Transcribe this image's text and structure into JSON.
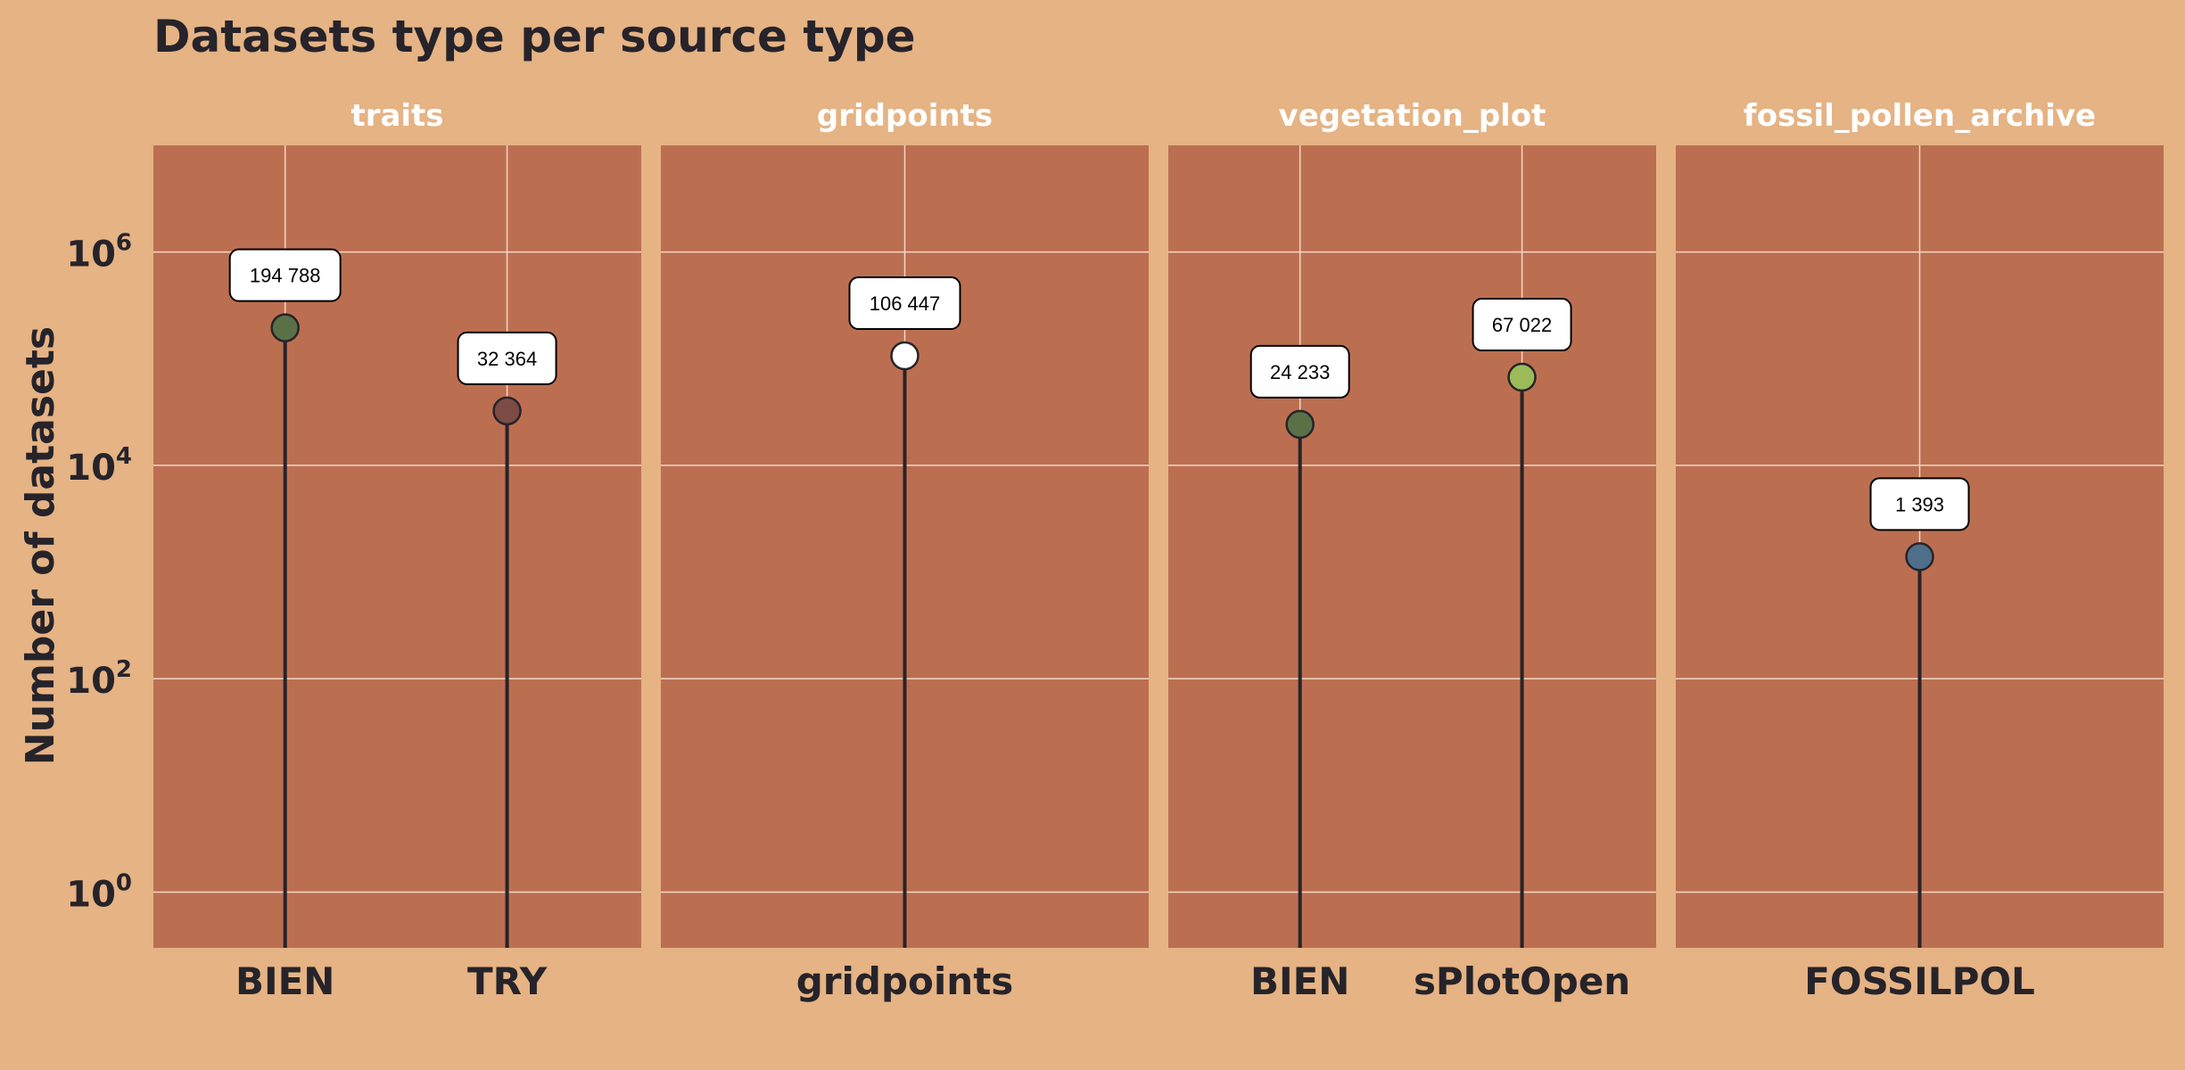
{
  "colors": {
    "background": "#e5b384",
    "panel": "#bc6f50",
    "grid": "#f0d8c8",
    "stem": "#26232a",
    "text": "#26232a",
    "strip_text": "#ffffff"
  },
  "chart_data": {
    "type": "lollipop",
    "title": "Datasets type per source type",
    "ylabel": "Number of datasets",
    "y_scale": "log10",
    "ylim": [
      0.3,
      10000000
    ],
    "y_ticks": [
      {
        "value": 1,
        "base": "10",
        "exp": "0"
      },
      {
        "value": 100,
        "base": "10",
        "exp": "2"
      },
      {
        "value": 10000,
        "base": "10",
        "exp": "4"
      },
      {
        "value": 1000000,
        "base": "10",
        "exp": "6"
      }
    ],
    "grid": true,
    "facets": [
      {
        "name": "traits",
        "points": [
          {
            "source": "BIEN",
            "value": 194788,
            "label": "194 788",
            "color": "#5a7148"
          },
          {
            "source": "TRY",
            "value": 32364,
            "label": "32 364",
            "color": "#7b4c45"
          }
        ]
      },
      {
        "name": "gridpoints",
        "points": [
          {
            "source": "gridpoints",
            "value": 106447,
            "label": "106 447",
            "color": "#ffffff"
          }
        ]
      },
      {
        "name": "vegetation_plot",
        "points": [
          {
            "source": "BIEN",
            "value": 24233,
            "label": "24 233",
            "color": "#5a7148"
          },
          {
            "source": "sPlotOpen",
            "value": 67022,
            "label": "67 022",
            "color": "#9bbb59"
          }
        ]
      },
      {
        "name": "fossil_pollen_archive",
        "points": [
          {
            "source": "FOSSILPOL",
            "value": 1393,
            "label": "1 393",
            "color": "#4f6e8a"
          }
        ]
      }
    ]
  }
}
